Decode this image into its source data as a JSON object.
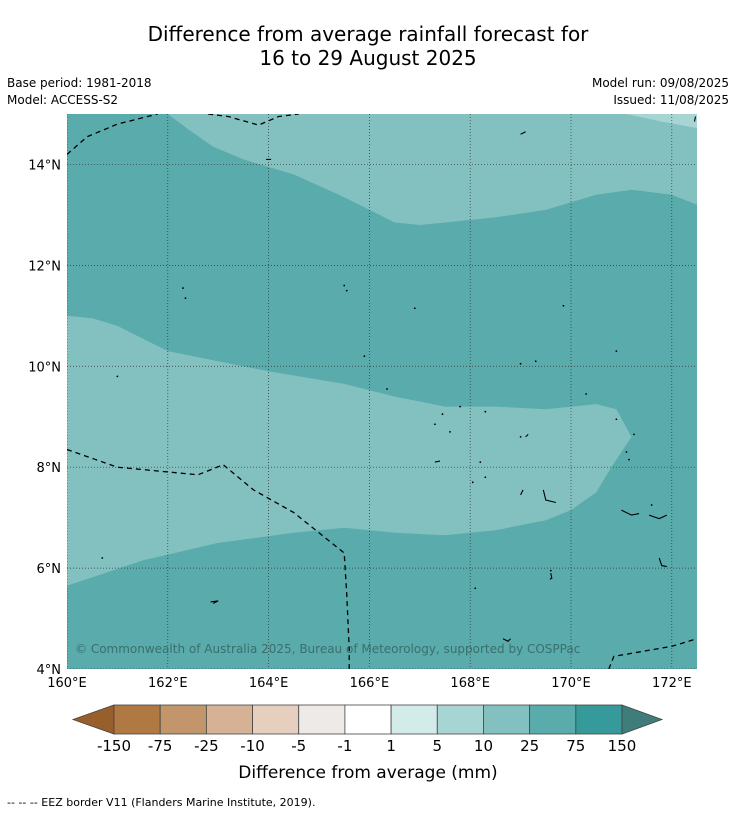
{
  "title": {
    "line1": "Difference from average rainfall forecast for",
    "line2": "16 to 29 August 2025"
  },
  "meta": {
    "base_period": "Base period: 1981-2018",
    "model": "Model: ACCESS-S2",
    "model_run": "Model run: 09/08/2025",
    "issued": "Issued: 11/08/2025"
  },
  "map": {
    "lat_range": [
      4,
      15
    ],
    "lon_range": [
      160,
      172.5
    ],
    "lat_ticks": [
      {
        "value": 4,
        "label": "4°N"
      },
      {
        "value": 6,
        "label": "6°N"
      },
      {
        "value": 8,
        "label": "8°N"
      },
      {
        "value": 10,
        "label": "10°N"
      },
      {
        "value": 12,
        "label": "12°N"
      },
      {
        "value": 14,
        "label": "14°N"
      }
    ],
    "lon_ticks": [
      {
        "value": 160,
        "label": "160°E"
      },
      {
        "value": 162,
        "label": "162°E"
      },
      {
        "value": 164,
        "label": "164°E"
      },
      {
        "value": 166,
        "label": "166°E"
      },
      {
        "value": 168,
        "label": "168°E"
      },
      {
        "value": 170,
        "label": "170°E"
      },
      {
        "value": 172,
        "label": "172°E"
      }
    ],
    "copyright": "© Commonwealth of Australia 2025, Bureau of Meteorology, supported by COSPPac",
    "regions": [
      {
        "class": "25 to 75 mm",
        "color": "#5aabab",
        "points": [
          [
            160,
            15
          ],
          [
            172.5,
            15
          ],
          [
            172.5,
            4
          ],
          [
            160,
            4
          ]
        ]
      },
      {
        "class": "10 to 25 mm",
        "color": "#82c1bf",
        "points": [
          [
            160,
            11
          ],
          [
            160.5,
            10.95
          ],
          [
            161,
            10.8
          ],
          [
            162,
            10.3
          ],
          [
            164,
            9.9
          ],
          [
            165.5,
            9.65
          ],
          [
            166.5,
            9.4
          ],
          [
            167.5,
            9.2
          ],
          [
            168.5,
            9.2
          ],
          [
            169.5,
            9.15
          ],
          [
            170.5,
            9.25
          ],
          [
            170.9,
            9.15
          ],
          [
            171.2,
            8.6
          ],
          [
            170.8,
            8
          ],
          [
            170.5,
            7.5
          ],
          [
            170,
            7.15
          ],
          [
            169.5,
            6.95
          ],
          [
            168.5,
            6.75
          ],
          [
            167.5,
            6.65
          ],
          [
            166.5,
            6.7
          ],
          [
            165.5,
            6.8
          ],
          [
            164.5,
            6.7
          ],
          [
            163,
            6.5
          ],
          [
            161.5,
            6.15
          ],
          [
            160,
            5.65
          ]
        ]
      },
      {
        "class": "10 to 25 mm",
        "color": "#82c1bf",
        "points": [
          [
            162,
            15
          ],
          [
            172.5,
            15
          ],
          [
            172.5,
            13.2
          ],
          [
            172,
            13.4
          ],
          [
            171.2,
            13.5
          ],
          [
            170.5,
            13.4
          ],
          [
            169.5,
            13.1
          ],
          [
            168.5,
            12.95
          ],
          [
            167.5,
            12.85
          ],
          [
            167,
            12.8
          ],
          [
            166.5,
            12.85
          ],
          [
            166.3,
            12.95
          ],
          [
            165.5,
            13.35
          ],
          [
            164.5,
            13.8
          ],
          [
            163.5,
            14.1
          ],
          [
            162.9,
            14.35
          ],
          [
            162.4,
            14.7
          ],
          [
            162,
            15
          ]
        ]
      },
      {
        "class": "5 to 10 mm",
        "color": "#a7d5d3",
        "points": [
          [
            171.1,
            15
          ],
          [
            172.5,
            15
          ],
          [
            172.5,
            14.72
          ],
          [
            171.8,
            14.85
          ]
        ]
      }
    ],
    "eez_lines": [
      [
        [
          160,
          14.2
        ],
        [
          160.4,
          14.55
        ],
        [
          161,
          14.8
        ],
        [
          161.6,
          14.95
        ],
        [
          161.8,
          15
        ]
      ],
      [
        [
          162.8,
          15
        ],
        [
          163.2,
          14.95
        ],
        [
          163.8,
          14.78
        ],
        [
          164.2,
          14.95
        ],
        [
          164.6,
          15
        ]
      ],
      [
        [
          160,
          8.35
        ],
        [
          161,
          8
        ],
        [
          162.6,
          7.85
        ],
        [
          163.1,
          8.05
        ],
        [
          163.7,
          7.55
        ],
        [
          164.5,
          7.1
        ],
        [
          165,
          6.7
        ],
        [
          165.5,
          6.3
        ],
        [
          165.55,
          5.5
        ],
        [
          165.6,
          4.4
        ],
        [
          165.6,
          4
        ]
      ],
      [
        [
          170.75,
          4
        ],
        [
          170.85,
          4.25
        ],
        [
          172,
          4.45
        ],
        [
          172.5,
          4.6
        ]
      ]
    ],
    "islands": [
      [
        [
          171,
          7.15
        ],
        [
          171.2,
          7.05
        ],
        [
          171.35,
          7.08
        ]
      ],
      [
        [
          171.55,
          7.05
        ],
        [
          171.75,
          6.98
        ],
        [
          171.9,
          7.05
        ]
      ],
      [
        [
          169.45,
          7.55
        ],
        [
          169.5,
          7.35
        ],
        [
          169.7,
          7.3
        ]
      ],
      [
        [
          162.9,
          5.3
        ],
        [
          163,
          5.35
        ],
        [
          162.85,
          5.33
        ]
      ],
      [
        [
          171.75,
          6.2
        ],
        [
          171.8,
          6.05
        ],
        [
          171.9,
          6.03
        ]
      ],
      [
        [
          168.65,
          4.6
        ],
        [
          168.75,
          4.55
        ],
        [
          168.8,
          4.6
        ]
      ],
      [
        [
          169.6,
          5.9
        ],
        [
          169.62,
          5.8
        ],
        [
          169.58,
          5.78
        ]
      ],
      [
        [
          163.95,
          14.1
        ],
        [
          164.05,
          14.1
        ]
      ],
      [
        [
          169.0,
          14.6
        ],
        [
          169.1,
          14.65
        ]
      ],
      [
        [
          172.45,
          14.85
        ],
        [
          172.47,
          14.95
        ]
      ],
      [
        [
          167.3,
          8.1
        ],
        [
          167.4,
          8.12
        ]
      ],
      [
        [
          169.0,
          7.45
        ],
        [
          169.05,
          7.55
        ]
      ],
      [
        [
          169.1,
          8.6
        ],
        [
          169.15,
          8.65
        ]
      ]
    ],
    "dots": [
      [
        162.3,
        11.55
      ],
      [
        162.35,
        11.35
      ],
      [
        165.5,
        11.6
      ],
      [
        165.55,
        11.5
      ],
      [
        166.9,
        11.15
      ],
      [
        169.85,
        11.2
      ],
      [
        165.9,
        10.2
      ],
      [
        161,
        9.8
      ],
      [
        169,
        10.05
      ],
      [
        169.3,
        10.1
      ],
      [
        168.3,
        9.1
      ],
      [
        167.45,
        9.05
      ],
      [
        167.8,
        9.2
      ],
      [
        167.3,
        8.85
      ],
      [
        167.6,
        8.7
      ],
      [
        168.2,
        8.1
      ],
      [
        168.3,
        7.8
      ],
      [
        171.1,
        8.3
      ],
      [
        171.15,
        8.15
      ],
      [
        171.25,
        8.65
      ],
      [
        170.9,
        8.95
      ],
      [
        171.6,
        7.25
      ],
      [
        160.7,
        6.2
      ],
      [
        169.6,
        5.95
      ],
      [
        170.3,
        9.45
      ],
      [
        170.9,
        10.3
      ],
      [
        169.0,
        8.6
      ],
      [
        166.35,
        9.55
      ],
      [
        168.1,
        5.6
      ],
      [
        168.05,
        7.7
      ]
    ]
  },
  "legend": {
    "title": "Difference from average (mm)",
    "colors": [
      "#985f2c",
      "#b07944",
      "#c2956b",
      "#d5b293",
      "#e6cfbf",
      "#eeeae7",
      "#ffffff",
      "#d3ebe9",
      "#a7d5d3",
      "#82c1bf",
      "#5aabab",
      "#359a99",
      "#3f7d7b"
    ],
    "labels": [
      "-150",
      "-75",
      "-25",
      "-10",
      "-5",
      "-1",
      "1",
      "5",
      "10",
      "25",
      "75",
      "150"
    ]
  },
  "footer": "--  --  -- EEZ border V11 (Flanders Marine Institute, 2019)."
}
